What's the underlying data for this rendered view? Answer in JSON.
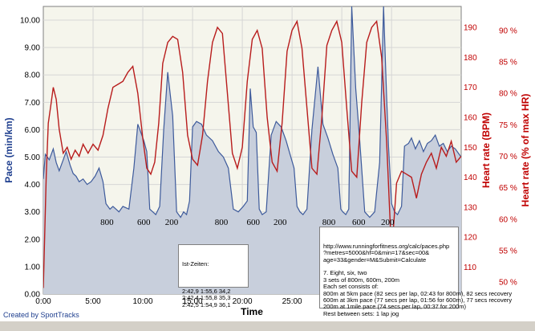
{
  "chart_data": {
    "type": "area",
    "xlabel": "Time",
    "ylabel_left": "Pace (min/km)",
    "ylabel_right_hr": "Heart rate (BPM)",
    "ylabel_right_pct": "Heart rate (% of max HR)",
    "xlim": [
      0,
      42
    ],
    "ylim_left": [
      0,
      10.5
    ],
    "ylim_hr": [
      101,
      197
    ],
    "x_ticks": [
      "0:00",
      "5:00",
      "10:00",
      "15:00",
      "20:00",
      "25:00",
      "30:00",
      "35:00"
    ],
    "y_left_ticks": [
      "0.00",
      "1.00",
      "2.00",
      "3.00",
      "4.00",
      "5.00",
      "6.00",
      "7.00",
      "8.00",
      "9.00",
      "10.00"
    ],
    "y_hr_ticks": [
      "110",
      "120",
      "130",
      "140",
      "150",
      "160",
      "170",
      "180",
      "190"
    ],
    "y_pct_ticks": [
      "50 %",
      "55 %",
      "60 %",
      "65 %",
      "70 %",
      "75 %",
      "80 %",
      "85 %",
      "90 %"
    ],
    "grid": true,
    "series": [
      {
        "name": "Pace",
        "axis": "left",
        "color": "#3d5a9b",
        "fill": "#c8cfdc",
        "x": [
          0,
          0.2,
          0.6,
          1,
          1.3,
          1.6,
          2,
          2.3,
          2.7,
          3,
          3.3,
          3.6,
          4,
          4.4,
          4.8,
          5.2,
          5.6,
          6,
          6.3,
          6.7,
          7,
          7.3,
          7.6,
          8,
          8.6,
          9.1,
          9.5,
          9.8,
          10.1,
          10.4,
          10.7,
          11,
          11.3,
          11.7,
          12.1,
          12.5,
          13,
          13.4,
          13.8,
          14.1,
          14.4,
          14.7,
          15,
          15.4,
          15.9,
          16.4,
          17,
          17.6,
          18.1,
          18.6,
          19.1,
          19.6,
          20.1,
          20.5,
          20.8,
          21.1,
          21.4,
          21.7,
          22,
          22.4,
          22.9,
          23.4,
          23.9,
          24.4,
          24.8,
          25.2,
          25.5,
          25.8,
          26.1,
          26.5,
          27,
          27.6,
          28.1,
          28.6,
          29.1,
          29.6,
          29.9,
          30.1,
          30.4,
          30.7,
          31,
          31.4,
          31.8,
          32.3,
          32.8,
          33.3,
          33.8,
          34.2,
          34.5,
          34.7,
          35,
          35.3,
          35.6,
          36,
          36.3,
          36.7,
          37,
          37.4,
          37.8,
          38.2,
          38.6,
          39,
          39.4,
          39.8,
          40.2,
          40.6,
          41,
          41.4,
          41.8,
          42
        ],
        "values": [
          4.2,
          5.1,
          4.9,
          5.3,
          4.8,
          4.5,
          4.9,
          5.2,
          4.7,
          4.4,
          4.3,
          4.1,
          4.2,
          4.0,
          4.1,
          4.3,
          4.6,
          4.1,
          3.3,
          3.1,
          3.2,
          3.1,
          3.0,
          3.2,
          3.1,
          4.6,
          6.2,
          5.9,
          5.6,
          5.2,
          3.1,
          3.0,
          2.9,
          3.2,
          6.0,
          8.1,
          6.5,
          3.0,
          2.8,
          3.0,
          2.9,
          3.4,
          6.1,
          6.3,
          6.2,
          5.8,
          5.6,
          5.2,
          5.0,
          4.6,
          3.1,
          3.0,
          3.2,
          3.4,
          7.5,
          6.1,
          5.9,
          3.1,
          2.9,
          3.0,
          5.8,
          6.3,
          6.1,
          5.6,
          5.1,
          4.6,
          3.2,
          3.0,
          2.9,
          3.1,
          6.0,
          8.3,
          6.2,
          5.7,
          5.1,
          4.6,
          3.1,
          3.0,
          2.9,
          3.1,
          10.5,
          7.5,
          5.6,
          3.0,
          2.8,
          3.0,
          4.8,
          10.5,
          7.2,
          5.4,
          3.3,
          3.0,
          2.9,
          3.2,
          5.4,
          5.5,
          5.7,
          5.3,
          5.6,
          5.2,
          5.5,
          5.6,
          5.8,
          5.4,
          5.5,
          5.2,
          5.4,
          5.3,
          5.1,
          5.0
        ]
      },
      {
        "name": "Heart rate",
        "axis": "hr",
        "color": "#b81c1c",
        "x": [
          0,
          0.3,
          0.5,
          0.8,
          1,
          1.3,
          1.6,
          2,
          2.4,
          2.8,
          3.2,
          3.6,
          4,
          4.5,
          5,
          5.5,
          6,
          6.5,
          7,
          7.5,
          8,
          8.5,
          9,
          9.5,
          10,
          10.4,
          10.8,
          11.2,
          11.6,
          12,
          12.5,
          13,
          13.5,
          14,
          14.5,
          15,
          15.5,
          16,
          16.5,
          17,
          17.5,
          18,
          18.5,
          19,
          19.5,
          20,
          20.5,
          21,
          21.5,
          22,
          22.5,
          23,
          23.5,
          24,
          24.5,
          25,
          25.5,
          26,
          26.5,
          27,
          27.5,
          28,
          28.5,
          29,
          29.5,
          30,
          30.5,
          31,
          31.5,
          32,
          32.5,
          33,
          33.5,
          34,
          34.5,
          35,
          35.5,
          36,
          36.5,
          37,
          37.5,
          38,
          38.5,
          39,
          39.5,
          40,
          40.5,
          41,
          41.5,
          42
        ],
        "values": [
          103,
          141,
          158,
          165,
          170,
          166,
          156,
          148,
          150,
          146,
          149,
          147,
          151,
          148,
          151,
          149,
          154,
          163,
          170,
          171,
          172,
          175,
          177,
          168,
          153,
          143,
          141,
          145,
          158,
          178,
          185,
          187,
          186,
          175,
          154,
          146,
          144,
          154,
          172,
          185,
          190,
          188,
          168,
          148,
          143,
          150,
          172,
          186,
          189,
          183,
          160,
          145,
          142,
          158,
          182,
          189,
          192,
          183,
          163,
          143,
          141,
          160,
          184,
          189,
          192,
          185,
          163,
          142,
          140,
          165,
          185,
          190,
          192,
          180,
          152,
          114,
          138,
          142,
          141,
          140,
          133,
          141,
          145,
          148,
          143,
          150,
          147,
          152,
          145,
          147
        ]
      }
    ],
    "annotations": [
      "800",
      "600",
      "200",
      "800",
      "600",
      "200",
      "800",
      "600",
      "200"
    ]
  },
  "notes": {
    "splits_title": "Ist-Zeiten:",
    "splits_body": "2:42,9 1:55,6 34,2\n2:42,4 1:55,8 35,3\n2:42,5 1:54,9 36,1",
    "info_body": "http://www.runningforfitness.org/calc/paces.php\n?metres=5000&hf=0&min=17&sec=00&\nage=33&gender=M&Submit=Calculate\n\n7. Eight, six, two\n3 sets of 800m, 600m, 200m\nEach set consists of:\n800m at 5km pace (82 secs per lap, 02:43 for 800m), 82 secs recovery\n600m at 3km pace (77 secs per lap, 01:56 for 600m), 77 secs recovery\n200m at 1mile pace (74 secs per lap, 00:37 for 200m)\nRest between sets: 1 lap jog"
  },
  "footer": {
    "credit": "Created by SportTracks"
  }
}
